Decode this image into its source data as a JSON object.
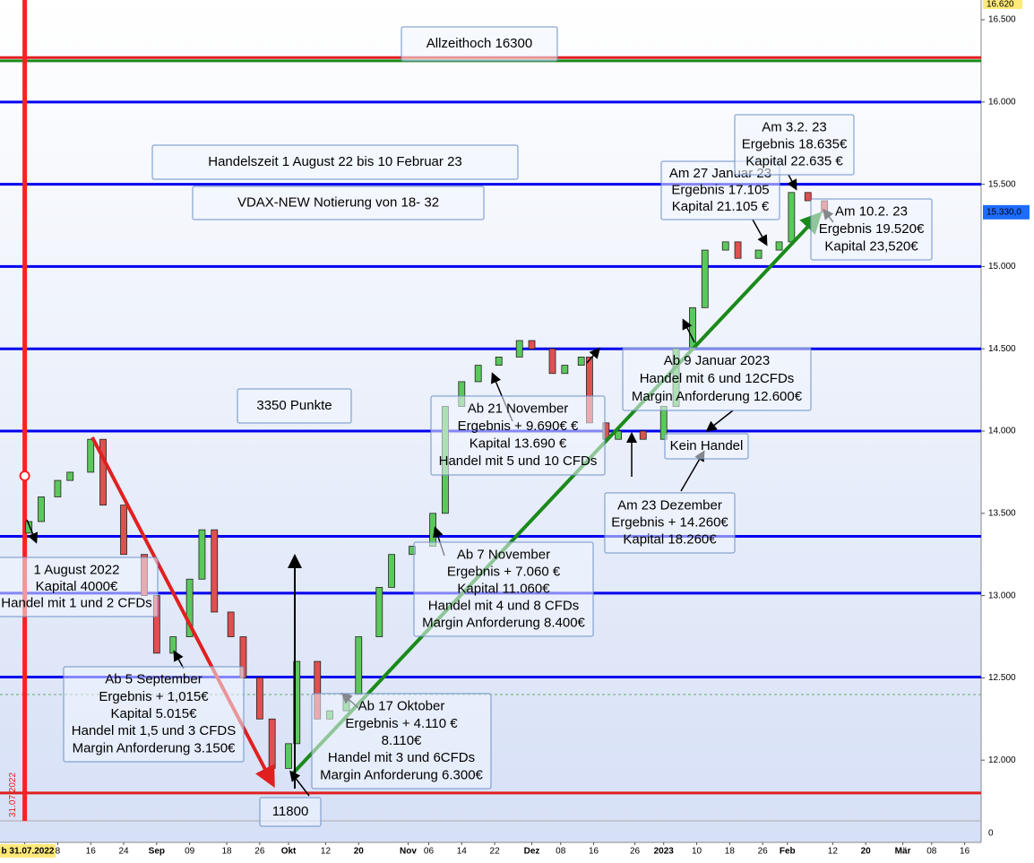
{
  "chart_data": {
    "type": "candlestick",
    "title": "Handelszeit 1 August 22 bis 10 Februar 23",
    "x": [
      "2022-08-01",
      "2022-08-04",
      "2022-08-08",
      "2022-08-11",
      "2022-08-16",
      "2022-08-19",
      "2022-08-24",
      "2022-08-29",
      "2022-09-01",
      "2022-09-05",
      "2022-09-09",
      "2022-09-12",
      "2022-09-15",
      "2022-09-19",
      "2022-09-22",
      "2022-09-26",
      "2022-09-29",
      "2022-10-03",
      "2022-10-05",
      "2022-10-10",
      "2022-10-13",
      "2022-10-17",
      "2022-10-20",
      "2022-10-25",
      "2022-10-28",
      "2022-11-02",
      "2022-11-07",
      "2022-11-10",
      "2022-11-14",
      "2022-11-18",
      "2022-11-23",
      "2022-11-28",
      "2022-12-01",
      "2022-12-06",
      "2022-12-09",
      "2022-12-13",
      "2022-12-15",
      "2022-12-19",
      "2022-12-22",
      "2022-12-28",
      "2023-01-02",
      "2023-01-05",
      "2023-01-09",
      "2023-01-12",
      "2023-01-17",
      "2023-01-20",
      "2023-01-25",
      "2023-01-30",
      "2023-02-02",
      "2023-02-06",
      "2023-02-10"
    ],
    "open": [
      13380,
      13450,
      13600,
      13700,
      13750,
      13950,
      13550,
      13250,
      13000,
      12650,
      12750,
      13100,
      13400,
      12900,
      12750,
      12500,
      12250,
      11950,
      12100,
      12600,
      12250,
      12300,
      12400,
      12750,
      13050,
      13250,
      13300,
      13500,
      14150,
      14300,
      14400,
      14450,
      14550,
      14500,
      14350,
      14400,
      14450,
      14050,
      13950,
      14000,
      13950,
      14150,
      14500,
      14750,
      15100,
      15150,
      15050,
      15100,
      15150,
      15450,
      15400
    ],
    "close": [
      13450,
      13600,
      13700,
      13750,
      13950,
      13550,
      13250,
      13000,
      12650,
      12750,
      13100,
      13400,
      12900,
      12750,
      12500,
      12250,
      11950,
      12100,
      12600,
      12250,
      12300,
      12400,
      12750,
      13050,
      13250,
      13300,
      13500,
      14150,
      14300,
      14400,
      14450,
      14550,
      14500,
      14350,
      14400,
      14450,
      14050,
      13950,
      14000,
      13950,
      14150,
      14500,
      14750,
      15100,
      15150,
      15050,
      15100,
      15150,
      15450,
      15400,
      15330
    ],
    "up_color": "#5cc85c",
    "down_color": "#e05050",
    "ylim": [
      11500,
      16620
    ],
    "yticks": [
      {
        "value": 12000,
        "label": "12.000"
      },
      {
        "value": 12500,
        "label": "12.500"
      },
      {
        "value": 13000,
        "label": "13.000"
      },
      {
        "value": 13500,
        "label": "13.500"
      },
      {
        "value": 14000,
        "label": "14.000"
      },
      {
        "value": 14500,
        "label": "14.500"
      },
      {
        "value": 15000,
        "label": "15.000"
      },
      {
        "value": 15500,
        "label": "15.500"
      },
      {
        "value": 16000,
        "label": "16.000"
      },
      {
        "value": 16500,
        "label": "16.500"
      }
    ],
    "top_label": {
      "value": 16620,
      "label": "16.620"
    },
    "last_price": {
      "value": 15330,
      "label": "15.330,0"
    },
    "lower_panel_label": "0",
    "xlim": [
      "2022-07-25",
      "2023-03-20"
    ],
    "xticks": [
      {
        "value": "2022-07-31",
        "label": "b 31.07.2022"
      },
      {
        "value": "2022-08-08",
        "label": "8"
      },
      {
        "value": "2022-08-16",
        "label": "16"
      },
      {
        "value": "2022-08-24",
        "label": "24"
      },
      {
        "value": "2022-09-01",
        "label": "Sep"
      },
      {
        "value": "2022-09-09",
        "label": "09"
      },
      {
        "value": "2022-09-18",
        "label": "18"
      },
      {
        "value": "2022-09-26",
        "label": "26"
      },
      {
        "value": "2022-10-03",
        "label": "Okt"
      },
      {
        "value": "2022-10-12",
        "label": "12"
      },
      {
        "value": "2022-10-20",
        "label": "20"
      },
      {
        "value": "2022-11-01",
        "label": "Nov"
      },
      {
        "value": "2022-11-06",
        "label": "06"
      },
      {
        "value": "2022-11-14",
        "label": "14"
      },
      {
        "value": "2022-11-22",
        "label": "22"
      },
      {
        "value": "2022-12-01",
        "label": "Dez"
      },
      {
        "value": "2022-12-08",
        "label": "08"
      },
      {
        "value": "2022-12-16",
        "label": "16"
      },
      {
        "value": "2022-12-26",
        "label": "26"
      },
      {
        "value": "2023-01-02",
        "label": "2023"
      },
      {
        "value": "2023-01-10",
        "label": "10"
      },
      {
        "value": "2023-01-18",
        "label": "18"
      },
      {
        "value": "2023-01-26",
        "label": "26"
      },
      {
        "value": "2023-02-01",
        "label": "Feb"
      },
      {
        "value": "2023-02-12",
        "label": "12"
      },
      {
        "value": "2023-02-20",
        "label": "20"
      },
      {
        "value": "2023-03-01",
        "label": "Mär"
      },
      {
        "value": "2023-03-08",
        "label": "08"
      },
      {
        "value": "2023-03-16",
        "label": "16"
      }
    ],
    "vline": {
      "date": "2022-07-31",
      "label": "31.07.2022",
      "color": "#ff2020"
    },
    "hlines": [
      {
        "value": 16270,
        "color": "#e02020"
      },
      {
        "value": 16250,
        "color": "#1a8a1a"
      },
      {
        "value": 16000,
        "color": "#0000ee"
      },
      {
        "value": 15500,
        "color": "#0000ee"
      },
      {
        "value": 15000,
        "color": "#0000ee"
      },
      {
        "value": 14500,
        "color": "#0000ee"
      },
      {
        "value": 14000,
        "color": "#0000ee"
      },
      {
        "value": 13360,
        "color": "#0000ee"
      },
      {
        "value": 13015,
        "color": "#0000ee"
      },
      {
        "value": 12505,
        "color": "#0000ee"
      },
      {
        "value": 11800,
        "color": "#e02020"
      }
    ],
    "annotations": [
      {
        "lines": [
          "Allzeithoch 16300"
        ],
        "color": "#e02020"
      },
      {
        "lines": [
          "Handelszeit 1 August 22 bis 10 Februar 23"
        ],
        "color": "#000000"
      },
      {
        "lines": [
          "VDAX-NEW Notierung von 18- 32"
        ],
        "color": "#000000"
      },
      {
        "lines": [
          "3350 Punkte"
        ],
        "color": "#000000"
      },
      {
        "lines": [
          "1 August 2022",
          "Kapital 4000€",
          "Handel mit 1 und 2 CFDs"
        ],
        "color": "#000000"
      },
      {
        "lines": [
          "Ab 5 September",
          "Ergebnis + 1,015€",
          "Kapital 5.015€",
          "Handel mit 1,5 und 3 CFDS",
          "Margin Anforderung 3.150€"
        ],
        "color": "#000000"
      },
      {
        "lines": [
          "Ab 17 Oktober",
          "Ergebnis + 4.110 €",
          "8.110€",
          "Handel mit 3 und 6CFDs",
          "Margin Anforderung 6.300€"
        ],
        "color": "#000000"
      },
      {
        "lines": [
          "11800"
        ],
        "color": "#e02020"
      },
      {
        "lines": [
          "Ab 7 November",
          "Ergebnis + 7.060 €",
          "Kapital 11.060€",
          "Handel mit 4 und 8 CFDs",
          "Margin Anforderung 8.400€"
        ],
        "color": "#000000"
      },
      {
        "lines": [
          "Ab 21 November",
          "Ergebnis + 9.690€ €",
          "Kapital 13.690 €",
          "Handel mit 5 und 10 CFDs"
        ],
        "color": "#000000"
      },
      {
        "lines": [
          "Ab 9 Januar 2023",
          "Handel mit 6 und 12CFDs",
          "Margin Anforderung 12.600€"
        ],
        "color": "#000000"
      },
      {
        "lines": [
          "Kein Handel"
        ],
        "color": "#000000"
      },
      {
        "lines": [
          "Am 23 Dezember",
          "Ergebnis + 14.260€",
          "Kapital 18.260€"
        ],
        "color": "#000000"
      },
      {
        "lines": [
          "Am 27 Januar 23",
          "Ergebnis 17.105",
          "Kapital  21.105 €"
        ],
        "color": "#000000"
      },
      {
        "lines": [
          "Am 3.2. 23",
          "Ergebnis 18.635€",
          "Kapital  22.635 €"
        ],
        "color": "#000000"
      },
      {
        "lines": [
          "Am 10.2. 23",
          "Ergebnis 19.520€",
          "Kapital  23,520€"
        ],
        "color": "#000000"
      }
    ]
  }
}
